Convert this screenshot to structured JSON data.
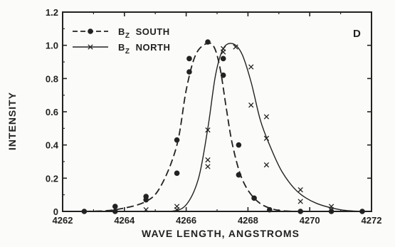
{
  "chart_data": {
    "type": "scatter",
    "panel_label": "D",
    "xlabel": "WAVE LENGTH, ANGSTROMS",
    "ylabel": "INTENSITY",
    "xlim": [
      4262,
      4272
    ],
    "ylim": [
      0,
      1.2
    ],
    "x_ticks": [
      4262,
      4264,
      4266,
      4268,
      4270,
      4272
    ],
    "y_ticks": [
      0,
      0.2,
      0.4,
      0.6,
      0.8,
      1.0,
      1.2
    ],
    "x_tick_labels": [
      "4262",
      "4264",
      "4266",
      "4268",
      "4270",
      "4272"
    ],
    "y_tick_labels": [
      "0",
      "0.2",
      "0.4",
      "0.6",
      "0.8",
      "1.0",
      "1.2"
    ],
    "grid": false,
    "legend_position": "top-left",
    "series": [
      {
        "name": "BZ SOUTH",
        "legend_main": "B",
        "legend_sub": "Z",
        "legend_rest": "SOUTH",
        "marker": "dot",
        "line_style": "dashed",
        "points": [
          [
            4262.7,
            0.0
          ],
          [
            4263.7,
            0.03
          ],
          [
            4263.7,
            0.0
          ],
          [
            4264.7,
            0.09
          ],
          [
            4264.7,
            0.07
          ],
          [
            4265.7,
            0.43
          ],
          [
            4265.7,
            0.23
          ],
          [
            4266.1,
            0.92
          ],
          [
            4266.1,
            0.84
          ],
          [
            4266.7,
            1.02
          ],
          [
            4267.2,
            0.92
          ],
          [
            4267.2,
            0.82
          ],
          [
            4267.7,
            0.4
          ],
          [
            4267.7,
            0.22
          ],
          [
            4268.2,
            0.08
          ],
          [
            4268.7,
            0.01
          ],
          [
            4269.7,
            0.0
          ],
          [
            4270.7,
            0.0
          ],
          [
            4271.7,
            0.0
          ]
        ],
        "curve": [
          [
            4262.7,
            0.0
          ],
          [
            4263.7,
            0.01
          ],
          [
            4264.7,
            0.06
          ],
          [
            4265.2,
            0.16
          ],
          [
            4265.7,
            0.4
          ],
          [
            4266.0,
            0.73
          ],
          [
            4266.3,
            0.94
          ],
          [
            4266.65,
            1.01
          ],
          [
            4266.9,
            0.99
          ],
          [
            4267.1,
            0.86
          ],
          [
            4267.3,
            0.62
          ],
          [
            4267.5,
            0.4
          ],
          [
            4267.8,
            0.2
          ],
          [
            4268.2,
            0.08
          ],
          [
            4268.7,
            0.02
          ],
          [
            4269.5,
            0.0
          ],
          [
            4271.7,
            0.0
          ]
        ]
      },
      {
        "name": "BZ NORTH",
        "legend_main": "B",
        "legend_sub": "Z",
        "legend_rest": "NORTH",
        "marker": "x",
        "line_style": "solid",
        "points": [
          [
            4264.7,
            0.01
          ],
          [
            4265.7,
            0.03
          ],
          [
            4265.7,
            0.01
          ],
          [
            4266.7,
            0.49
          ],
          [
            4266.7,
            0.31
          ],
          [
            4266.7,
            0.27
          ],
          [
            4267.2,
            0.98
          ],
          [
            4267.2,
            0.96
          ],
          [
            4267.6,
            0.99
          ],
          [
            4268.1,
            0.87
          ],
          [
            4268.1,
            0.64
          ],
          [
            4268.6,
            0.57
          ],
          [
            4268.6,
            0.44
          ],
          [
            4268.6,
            0.28
          ],
          [
            4269.7,
            0.13
          ],
          [
            4269.7,
            0.06
          ],
          [
            4270.7,
            0.03
          ],
          [
            4270.7,
            0.01
          ]
        ],
        "curve": [
          [
            4264.7,
            0.0
          ],
          [
            4265.5,
            0.0
          ],
          [
            4266.0,
            0.04
          ],
          [
            4266.4,
            0.2
          ],
          [
            4266.7,
            0.5
          ],
          [
            4266.95,
            0.82
          ],
          [
            4267.2,
            0.98
          ],
          [
            4267.5,
            1.01
          ],
          [
            4267.8,
            0.95
          ],
          [
            4268.1,
            0.78
          ],
          [
            4268.4,
            0.55
          ],
          [
            4268.7,
            0.4
          ],
          [
            4269.1,
            0.24
          ],
          [
            4269.6,
            0.12
          ],
          [
            4270.2,
            0.05
          ],
          [
            4271.0,
            0.01
          ],
          [
            4271.7,
            0.0
          ]
        ]
      }
    ]
  }
}
